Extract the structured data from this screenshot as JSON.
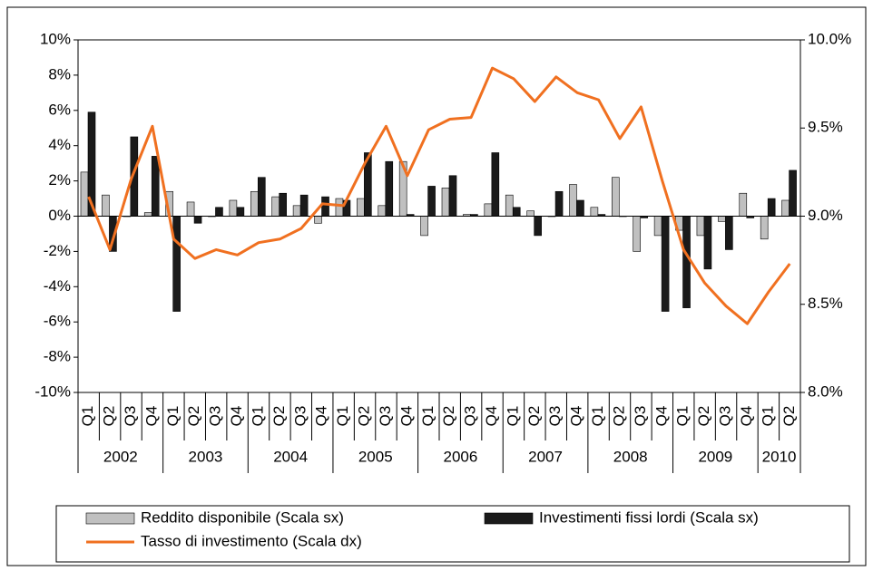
{
  "chart_data": {
    "type": "bar-line",
    "categories": [
      "Q1",
      "Q2",
      "Q3",
      "Q4",
      "Q1",
      "Q2",
      "Q3",
      "Q4",
      "Q1",
      "Q2",
      "Q3",
      "Q4",
      "Q1",
      "Q2",
      "Q3",
      "Q4",
      "Q1",
      "Q2",
      "Q3",
      "Q4",
      "Q1",
      "Q2",
      "Q3",
      "Q4",
      "Q1",
      "Q2",
      "Q3",
      "Q4",
      "Q1",
      "Q2",
      "Q3",
      "Q4",
      "Q1",
      "Q2"
    ],
    "x_groups": [
      "2002",
      "2003",
      "2004",
      "2005",
      "2006",
      "2007",
      "2008",
      "2009",
      "2010"
    ],
    "series": [
      {
        "name": "Reddito disponibile (Scala sx)",
        "color": "#c0c0c0",
        "kind": "bar",
        "values": [
          2.5,
          1.2,
          0,
          0.2,
          1.4,
          0.8,
          0,
          0.9,
          1.4,
          1.1,
          0.6,
          -0.4,
          1.0,
          1.0,
          0.6,
          3.1,
          -1.1,
          1.6,
          0.1,
          0.7,
          1.2,
          0.3,
          0,
          1.8,
          0.5,
          2.2,
          -2.0,
          -1.1,
          -0.8,
          -1.1,
          -0.3,
          1.3,
          -1.3,
          0.9
        ]
      },
      {
        "name": "Investimenti fissi lordi (Scala sx)",
        "color": "#1a1a1a",
        "kind": "bar",
        "values": [
          5.9,
          -2.0,
          4.5,
          3.4,
          -5.4,
          -0.4,
          0.5,
          0.5,
          2.2,
          1.3,
          1.2,
          1.1,
          0.9,
          3.6,
          3.1,
          0.1,
          1.7,
          2.3,
          0.1,
          3.6,
          0.5,
          -1.1,
          1.4,
          0.9,
          0.1,
          0,
          -0.1,
          -5.4,
          -5.2,
          -3.0,
          -1.9,
          -0.1,
          1.0,
          2.6
        ]
      },
      {
        "name": "Tasso di investimento (Scala dx)",
        "color": "#f07020",
        "kind": "line",
        "axis": "y2",
        "values": [
          9.11,
          8.81,
          9.21,
          9.51,
          8.87,
          8.76,
          8.81,
          8.78,
          8.85,
          8.87,
          8.93,
          9.07,
          9.06,
          9.3,
          9.51,
          9.23,
          9.49,
          9.55,
          9.56,
          9.84,
          9.78,
          9.65,
          9.79,
          9.7,
          9.66,
          9.44,
          9.62,
          9.2,
          8.81,
          8.62,
          8.49,
          8.39,
          8.57,
          8.73
        ]
      }
    ],
    "ylim": [
      -10,
      10
    ],
    "yticks": [
      {
        "value": -10,
        "label": "-10%"
      },
      {
        "value": -8,
        "label": "-8%"
      },
      {
        "value": -6,
        "label": "-6%"
      },
      {
        "value": -4,
        "label": "-4%"
      },
      {
        "value": -2,
        "label": "-2%"
      },
      {
        "value": 0,
        "label": "0%"
      },
      {
        "value": 2,
        "label": "2%"
      },
      {
        "value": 4,
        "label": "4%"
      },
      {
        "value": 6,
        "label": "6%"
      },
      {
        "value": 8,
        "label": "8%"
      },
      {
        "value": 10,
        "label": "10%"
      }
    ],
    "y2lim": [
      8.0,
      10.0
    ],
    "y2ticks": [
      {
        "value": 8.0,
        "label": "8.0%"
      },
      {
        "value": 8.5,
        "label": "8.5%"
      },
      {
        "value": 9.0,
        "label": "9.0%"
      },
      {
        "value": 9.5,
        "label": "9.5%"
      },
      {
        "value": 10.0,
        "label": "10.0%"
      }
    ],
    "grid": false,
    "legend": "bottom"
  }
}
